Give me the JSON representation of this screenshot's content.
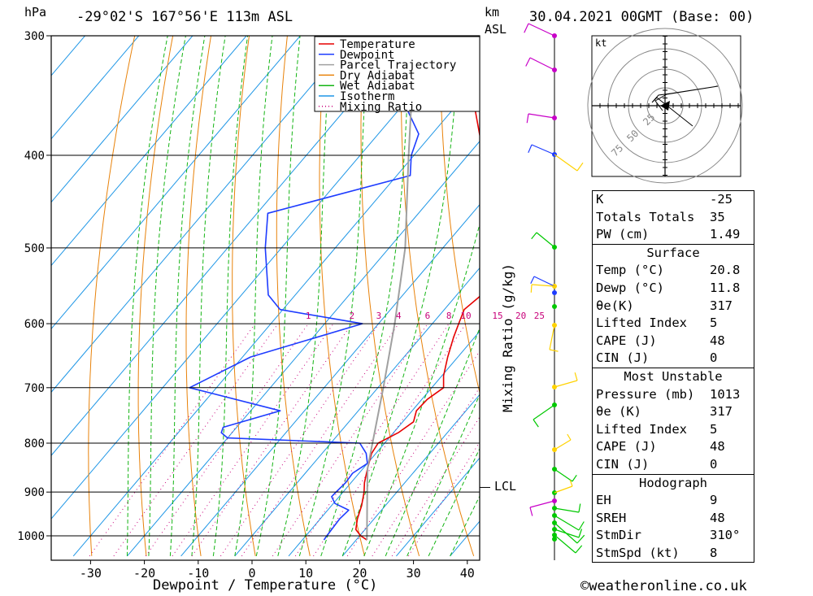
{
  "header": {
    "pressure_unit": "hPa",
    "location": "-29°02'S 167°56'E 113m ASL",
    "height_unit_line1": "km",
    "height_unit_line2": "ASL",
    "datetime": "30.04.2021 00GMT (Base: 00)"
  },
  "footer": {
    "xlabel": "Dewpoint / Temperature (°C)",
    "credit": "©weatheronline.co.uk",
    "mixing_ratio_label": "Mixing Ratio (g/kg)",
    "lcl_label": "LCL"
  },
  "legend": [
    {
      "name": "Temperature",
      "color": "#e60000",
      "style": "solid"
    },
    {
      "name": "Dewpoint",
      "color": "#1e3cff",
      "style": "solid"
    },
    {
      "name": "Parcel Trajectory",
      "color": "#a0a0a0",
      "style": "solid"
    },
    {
      "name": "Dry Adiabat",
      "color": "#e8820a",
      "style": "solid"
    },
    {
      "name": "Wet Adiabat",
      "color": "#14b414",
      "style": "solid"
    },
    {
      "name": "Isotherm",
      "color": "#1e96e6",
      "style": "solid"
    },
    {
      "name": "Mixing Ratio",
      "color": "#c8007a",
      "style": "dotted"
    }
  ],
  "chart_data": {
    "type": "line",
    "subtype": "skew-T log-P sounding",
    "xlabel": "Dewpoint / Temperature (°C)",
    "ylabel": "hPa",
    "x_ticks": [
      -30,
      -20,
      -10,
      0,
      10,
      20,
      30,
      40
    ],
    "pressure_levels": [
      300,
      400,
      500,
      600,
      700,
      800,
      900,
      1000
    ],
    "mixing_ratio_values": [
      1,
      2,
      3,
      4,
      6,
      8,
      10,
      15,
      20,
      25
    ],
    "series": [
      {
        "name": "Temperature",
        "color": "#e60000",
        "points": [
          [
            1010,
            22.0
          ],
          [
            1000,
            20.2
          ],
          [
            985,
            18.3
          ],
          [
            960,
            16.9
          ],
          [
            930,
            15.6
          ],
          [
            900,
            13.9
          ],
          [
            880,
            12.5
          ],
          [
            850,
            10.8
          ],
          [
            820,
            9.2
          ],
          [
            800,
            8.8
          ],
          [
            780,
            10.9
          ],
          [
            760,
            12.0
          ],
          [
            740,
            10.8
          ],
          [
            720,
            11.0
          ],
          [
            700,
            12.2
          ],
          [
            680,
            10.3
          ],
          [
            650,
            8.1
          ],
          [
            620,
            6.1
          ],
          [
            600,
            4.9
          ],
          [
            580,
            3.7
          ],
          [
            560,
            4.6
          ],
          [
            540,
            2.8
          ],
          [
            520,
            0.4
          ],
          [
            500,
            -2.4
          ],
          [
            480,
            -5.1
          ],
          [
            460,
            -7.8
          ],
          [
            440,
            -10.8
          ],
          [
            420,
            -14.0
          ],
          [
            400,
            -17.0
          ],
          [
            380,
            -21.2
          ],
          [
            360,
            -25.5
          ],
          [
            340,
            -29.8
          ],
          [
            320,
            -33.6
          ],
          [
            310,
            -34.0
          ],
          [
            300,
            -35.4
          ]
        ]
      },
      {
        "name": "Dewpoint",
        "color": "#1e3cff",
        "points": [
          [
            1010,
            14.0
          ],
          [
            1000,
            13.9
          ],
          [
            960,
            13.6
          ],
          [
            940,
            13.9
          ],
          [
            925,
            10.3
          ],
          [
            910,
            8.6
          ],
          [
            900,
            8.7
          ],
          [
            880,
            9.0
          ],
          [
            860,
            8.8
          ],
          [
            840,
            10.0
          ],
          [
            820,
            8.2
          ],
          [
            800,
            5.4
          ],
          [
            790,
            -20.0
          ],
          [
            780,
            -22.0
          ],
          [
            770,
            -22.5
          ],
          [
            740,
            -14.5
          ],
          [
            700,
            -35.0
          ],
          [
            650,
            -28.5
          ],
          [
            600,
            -13.0
          ],
          [
            580,
            -30.5
          ],
          [
            560,
            -35.0
          ],
          [
            500,
            -43.0
          ],
          [
            460,
            -48.0
          ],
          [
            420,
            -27.5
          ],
          [
            400,
            -30.5
          ],
          [
            380,
            -32.5
          ],
          [
            360,
            -38.0
          ],
          [
            330,
            -39.0
          ],
          [
            310,
            -50.0
          ],
          [
            300,
            -52.0
          ]
        ]
      },
      {
        "name": "Parcel Trajectory",
        "color": "#a0a0a0",
        "points": [
          [
            1010,
            22.0
          ],
          [
            900,
            14.5
          ],
          [
            850,
            10.8
          ],
          [
            700,
            1.0
          ],
          [
            600,
            -7.0
          ],
          [
            500,
            -17.0
          ],
          [
            400,
            -31.0
          ],
          [
            340,
            -41.0
          ],
          [
            300,
            -50.0
          ]
        ]
      }
    ],
    "lcl_pressure": 890,
    "wind_profile_colors": [
      "#00c800",
      "#ffd200",
      "#c800c8",
      "#1e3cff"
    ],
    "hodograph": {
      "unit": "kt",
      "rings": [
        25,
        50,
        75
      ]
    }
  },
  "indices": {
    "general": [
      {
        "label": "K",
        "value": "-25"
      },
      {
        "label": "Totals Totals",
        "value": "35"
      },
      {
        "label": "PW (cm)",
        "value": "1.49"
      }
    ],
    "surface_title": "Surface",
    "surface": [
      {
        "label": "Temp (°C)",
        "value": "20.8"
      },
      {
        "label": "Dewp (°C)",
        "value": "11.8"
      },
      {
        "label": "θe(K)",
        "value": "317"
      },
      {
        "label": "Lifted Index",
        "value": "5"
      },
      {
        "label": "CAPE (J)",
        "value": "48"
      },
      {
        "label": "CIN (J)",
        "value": "0"
      }
    ],
    "unstable_title": "Most Unstable",
    "unstable": [
      {
        "label": "Pressure (mb)",
        "value": "1013"
      },
      {
        "label": "θe (K)",
        "value": "317"
      },
      {
        "label": "Lifted Index",
        "value": "5"
      },
      {
        "label": "CAPE (J)",
        "value": "48"
      },
      {
        "label": "CIN (J)",
        "value": "0"
      }
    ],
    "hodograph_title": "Hodograph",
    "hodograph": [
      {
        "label": "EH",
        "value": "9"
      },
      {
        "label": "SREH",
        "value": "48"
      },
      {
        "label": "StmDir",
        "value": "310°"
      },
      {
        "label": "StmSpd (kt)",
        "value": "8"
      }
    ]
  }
}
